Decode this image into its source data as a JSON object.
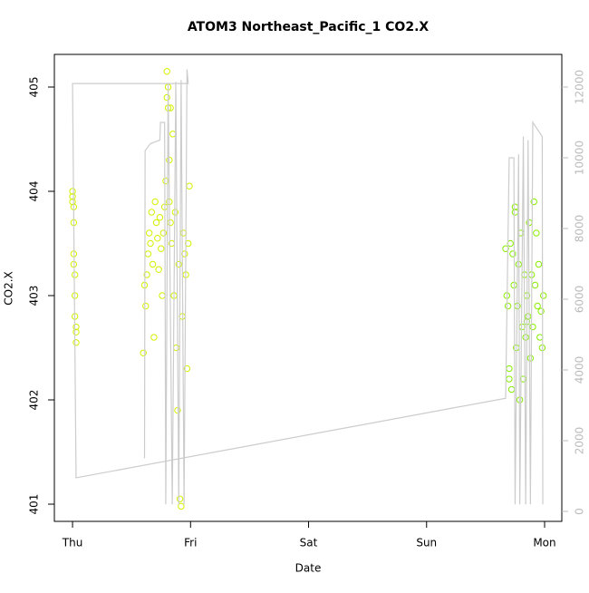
{
  "chart_data": {
    "type": "scatter",
    "title": "ATOM3 Northeast_Pacific_1 CO2.X",
    "xlabel": "Date",
    "ylabel": "CO2.X",
    "xlim": [
      -0.154,
      4.146
    ],
    "xticks": [
      {
        "value": 0,
        "label": "Thu"
      },
      {
        "value": 1,
        "label": "Fri"
      },
      {
        "value": 2,
        "label": "Sat"
      },
      {
        "value": 3,
        "label": "Sun"
      },
      {
        "value": 4,
        "label": "Mon"
      }
    ],
    "ylim": [
      400.835,
      405.313
    ],
    "yticks": [
      401,
      402,
      403,
      404,
      405
    ],
    "y2lim": [
      -282,
      12923
    ],
    "y2ticks": [
      0,
      2000,
      4000,
      6000,
      8000,
      10000,
      12000
    ],
    "series": [
      {
        "color": "#d4f000",
        "x": [
          0,
          0,
          0,
          0.01,
          0.01,
          0.01,
          0.01,
          0.02,
          0.02,
          0.02,
          0.03,
          0.03,
          0.03,
          0.6,
          0.61,
          0.62,
          0.63,
          0.64,
          0.65,
          0.66,
          0.67,
          0.68,
          0.69,
          0.7,
          0.71,
          0.72,
          0.73,
          0.74,
          0.75,
          0.76,
          0.77,
          0.78,
          0.79,
          0.8,
          0.8,
          0.81,
          0.81,
          0.82,
          0.82,
          0.83,
          0.83,
          0.84,
          0.85,
          0.86,
          0.87,
          0.88,
          0.89,
          0.9,
          0.91,
          0.92,
          0.93,
          0.94,
          0.95,
          0.96,
          0.97,
          0.98,
          0.99
        ],
        "values": [
          404.0,
          403.95,
          403.9,
          403.85,
          403.7,
          403.4,
          403.3,
          403.2,
          403.0,
          402.8,
          402.7,
          402.65,
          402.55,
          402.45,
          403.1,
          402.9,
          403.2,
          403.4,
          403.6,
          403.5,
          403.8,
          403.3,
          402.6,
          403.9,
          403.7,
          403.55,
          403.25,
          403.75,
          403.45,
          403.0,
          403.6,
          403.85,
          404.1,
          405.15,
          404.9,
          405.0,
          404.8,
          403.9,
          404.3,
          403.7,
          404.8,
          403.5,
          404.55,
          403.0,
          403.8,
          402.5,
          401.9,
          403.3,
          401.05,
          400.98,
          402.8,
          403.6,
          403.4,
          403.2,
          402.3,
          403.5,
          404.05
        ]
      },
      {
        "color": "#88ee00",
        "x": [
          3.67,
          3.68,
          3.69,
          3.7,
          3.71,
          3.72,
          3.73,
          3.74,
          3.75,
          3.76,
          3.77,
          3.78,
          3.79,
          3.8,
          3.81,
          3.82,
          3.83,
          3.84,
          3.85,
          3.86,
          3.87,
          3.88,
          3.89,
          3.9,
          3.91,
          3.92,
          3.93,
          3.94,
          3.95,
          3.96,
          3.97,
          3.98,
          3.99,
          3.7,
          3.75,
          3.85
        ],
        "values": [
          403.45,
          403.0,
          402.9,
          402.2,
          403.5,
          402.1,
          403.4,
          403.1,
          403.8,
          402.5,
          402.9,
          403.3,
          402.0,
          403.6,
          402.7,
          402.2,
          403.2,
          402.6,
          403.0,
          402.8,
          403.7,
          402.4,
          403.2,
          402.7,
          403.9,
          403.1,
          403.6,
          402.9,
          403.3,
          402.6,
          402.85,
          402.5,
          403.0,
          402.3,
          403.85,
          402.75
        ]
      },
      {
        "type": "line",
        "axis": "y2",
        "color": "#cccccc",
        "x": [
          0.61,
          0.615,
          0.66,
          0.74,
          0.745,
          0.78,
          0.79,
          0.81,
          0.845,
          0.875,
          0.9,
          0.92,
          0.945,
          0.97,
          0.98,
          0,
          0.03,
          3.67,
          3.7,
          3.74,
          3.75,
          3.78,
          3.79,
          3.82,
          3.84,
          3.86,
          3.88,
          3.9,
          3.98,
          3.985
        ],
        "values": [
          1500,
          10200,
          10400,
          10500,
          11000,
          11000,
          200,
          12100,
          200,
          12150,
          200,
          12200,
          200,
          12500,
          12100,
          12100,
          950,
          3200,
          10000,
          10000,
          200,
          10100,
          200,
          10600,
          200,
          10500,
          200,
          11000,
          10600,
          200
        ]
      }
    ]
  }
}
